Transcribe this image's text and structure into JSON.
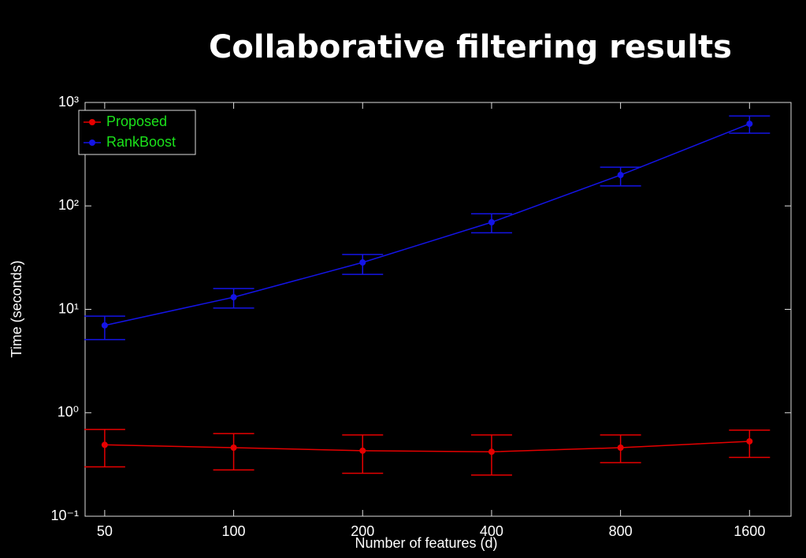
{
  "chart_data": {
    "type": "errorbar-line",
    "title": "Collaborative filtering results",
    "x_label": "Number of features (d)",
    "y_label": "Time (seconds)",
    "x": [
      50,
      100,
      200,
      400,
      800,
      1600
    ],
    "xlim": [
      45,
      2000
    ],
    "xticks": [
      50,
      100,
      200,
      400,
      800,
      1600
    ],
    "xscale": "log",
    "ylim": [
      0.1,
      1000
    ],
    "yscale": "log",
    "yticks": [
      {
        "value": 0.1,
        "label": "10⁻¹"
      },
      {
        "value": 1,
        "label": "10⁰"
      },
      {
        "value": 10,
        "label": "10¹"
      },
      {
        "value": 100,
        "label": "10²"
      },
      {
        "value": 1000,
        "label": "10³"
      }
    ],
    "legend": "upper left",
    "series": [
      {
        "name": "Proposed",
        "color": "#e60000",
        "values": [
          0.49,
          0.46,
          0.43,
          0.42,
          0.46,
          0.53
        ],
        "lower": [
          0.3,
          0.28,
          0.26,
          0.25,
          0.33,
          0.37
        ],
        "upper": [
          0.69,
          0.63,
          0.61,
          0.61,
          0.61,
          0.68
        ]
      },
      {
        "name": "RankBoost",
        "color": "#1414e6",
        "values": [
          7.0,
          13.1,
          28.4,
          69.5,
          199,
          622
        ],
        "lower": [
          5.1,
          10.3,
          21.8,
          55,
          156,
          505
        ],
        "upper": [
          8.6,
          15.9,
          33.9,
          84,
          237,
          741
        ]
      }
    ]
  }
}
